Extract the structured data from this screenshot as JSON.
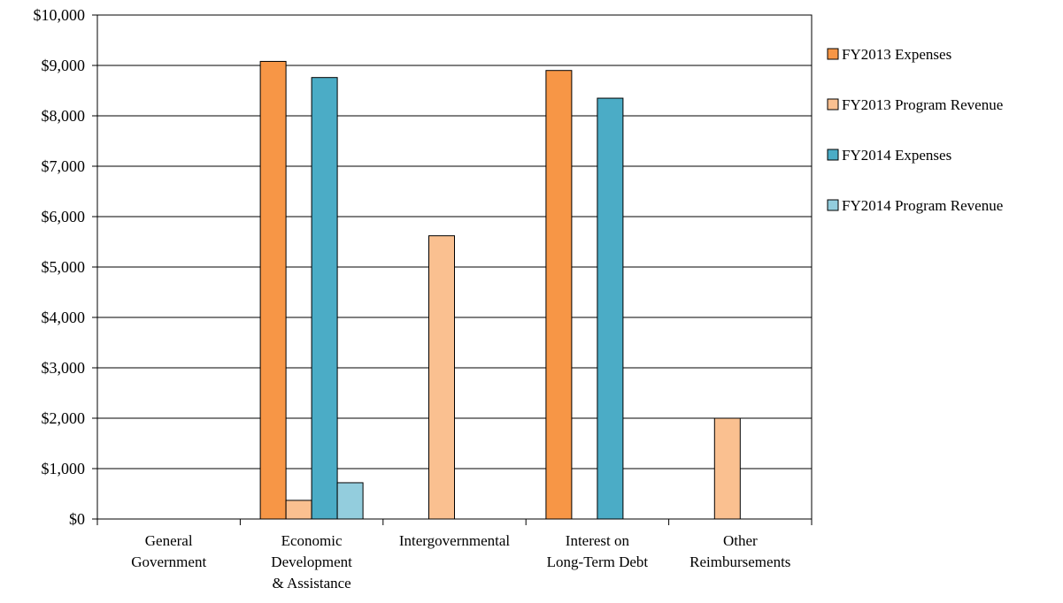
{
  "chart_data": {
    "type": "bar",
    "title": "",
    "xlabel": "",
    "ylabel": "",
    "ylim": [
      0,
      10000
    ],
    "yticks": [
      0,
      1000,
      2000,
      3000,
      4000,
      5000,
      6000,
      7000,
      8000,
      9000,
      10000
    ],
    "ytick_labels": [
      "$0",
      "$1,000",
      "$2,000",
      "$3,000",
      "$4,000",
      "$5,000",
      "$6,000",
      "$7,000",
      "$8,000",
      "$9,000",
      "$10,000"
    ],
    "grid": "horizontal",
    "legend_position": "right",
    "categories": [
      [
        "General",
        "Government"
      ],
      [
        "Economic",
        "Development",
        "& Assistance"
      ],
      [
        "Intergovernmental"
      ],
      [
        "Interest on",
        "Long-Term Debt"
      ],
      [
        "Other",
        "Reimbursements"
      ]
    ],
    "series": [
      {
        "name": "FY2013 Expenses",
        "color": "#F79646",
        "values": [
          0,
          9080,
          0,
          8900,
          0
        ]
      },
      {
        "name": "FY2013 Program Revenue",
        "color": "#FAC090",
        "values": [
          0,
          370,
          5620,
          0,
          2000
        ]
      },
      {
        "name": "FY2014 Expenses",
        "color": "#4BACC6",
        "values": [
          0,
          8760,
          0,
          8350,
          0
        ]
      },
      {
        "name": "FY2014 Program Revenue",
        "color": "#93CDDD",
        "values": [
          0,
          720,
          0,
          0,
          0
        ]
      }
    ]
  }
}
